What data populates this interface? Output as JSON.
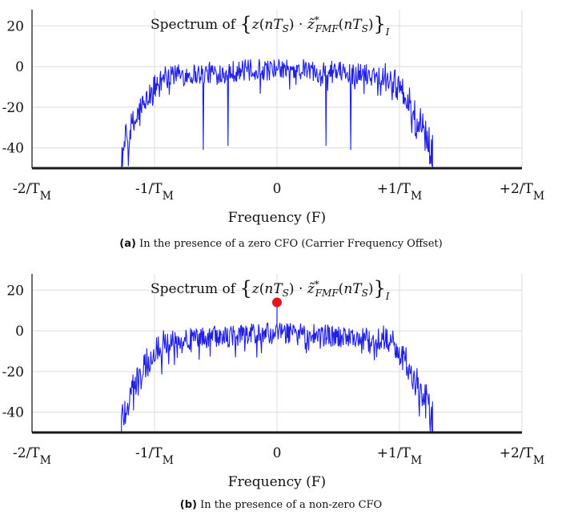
{
  "chart_data": [
    {
      "type": "line",
      "title_prefix": "Spectrum of",
      "title_math": "{z(nT_S) · z̃*_FMF(nT_S)}_I",
      "xlabel": "Frequency (F)",
      "ylabel": "",
      "x_ticks": [
        "-2/T_M",
        "-1/T_M",
        "0",
        "+1/T_M",
        "+2/T_M"
      ],
      "x_tick_values": [
        -2,
        -1,
        0,
        1,
        2
      ],
      "y_ticks": [
        20,
        0,
        -20,
        -40
      ],
      "xlim": [
        -2,
        2
      ],
      "ylim": [
        -50,
        28
      ],
      "grid": true,
      "line_color": "#1f1fe6",
      "band_edge": 1.27,
      "passband": [
        -0.85,
        0.85
      ],
      "noise_floor": -3,
      "dips": [
        {
          "x": -0.6,
          "y": -41
        },
        {
          "x": -0.4,
          "y": -39
        },
        {
          "x": 0.4,
          "y": -39
        },
        {
          "x": 0.6,
          "y": -41
        }
      ],
      "peak": null,
      "caption_tag": "(a)",
      "caption_text": "In the presence of a zero CFO (Carrier Frequency Offset)"
    },
    {
      "type": "line",
      "title_prefix": "Spectrum of",
      "title_math": "{z(nT_S) · z̃*_FMF(nT_S)}_I",
      "xlabel": "Frequency (F)",
      "ylabel": "",
      "x_ticks": [
        "-2/T_M",
        "-1/T_M",
        "0",
        "+1/T_M",
        "+2/T_M"
      ],
      "x_tick_values": [
        -2,
        -1,
        0,
        1,
        2
      ],
      "y_ticks": [
        20,
        0,
        -20,
        -40
      ],
      "xlim": [
        -2,
        2
      ],
      "ylim": [
        -50,
        28
      ],
      "grid": true,
      "line_color": "#1f1fe6",
      "band_edge": 1.27,
      "passband": [
        -0.85,
        0.85
      ],
      "noise_floor": -3,
      "dips": [],
      "peak": {
        "x": 0,
        "y": 14,
        "color": "#e8141b"
      },
      "caption_tag": "(b)",
      "caption_text": "In the presence of a non-zero CFO"
    }
  ]
}
